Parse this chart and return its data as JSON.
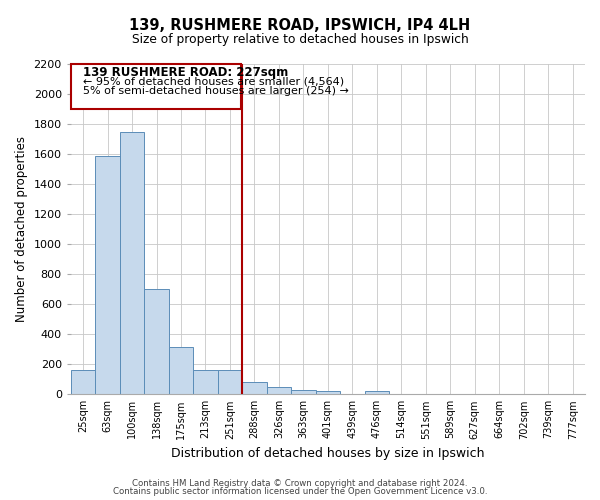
{
  "title": "139, RUSHMERE ROAD, IPSWICH, IP4 4LH",
  "subtitle": "Size of property relative to detached houses in Ipswich",
  "xlabel": "Distribution of detached houses by size in Ipswich",
  "ylabel": "Number of detached properties",
  "footer_line1": "Contains HM Land Registry data © Crown copyright and database right 2024.",
  "footer_line2": "Contains public sector information licensed under the Open Government Licence v3.0.",
  "bar_labels": [
    "25sqm",
    "63sqm",
    "100sqm",
    "138sqm",
    "175sqm",
    "213sqm",
    "251sqm",
    "288sqm",
    "326sqm",
    "363sqm",
    "401sqm",
    "439sqm",
    "476sqm",
    "514sqm",
    "551sqm",
    "589sqm",
    "627sqm",
    "664sqm",
    "702sqm",
    "739sqm",
    "777sqm"
  ],
  "bar_values": [
    160,
    1590,
    1750,
    700,
    315,
    160,
    160,
    85,
    50,
    30,
    20,
    0,
    20,
    0,
    0,
    0,
    0,
    0,
    0,
    0,
    0
  ],
  "bar_color": "#c6d9ec",
  "bar_edgecolor": "#5b8db8",
  "grid_color": "#c8c8c8",
  "vline_x": 6.5,
  "vline_color": "#aa0000",
  "annotation_title": "139 RUSHMERE ROAD: 227sqm",
  "annotation_line1": "← 95% of detached houses are smaller (4,564)",
  "annotation_line2": "5% of semi-detached houses are larger (254) →",
  "annotation_box_color": "#ffffff",
  "annotation_box_edgecolor": "#aa0000",
  "ylim": [
    0,
    2200
  ],
  "yticks": [
    0,
    200,
    400,
    600,
    800,
    1000,
    1200,
    1400,
    1600,
    1800,
    2000,
    2200
  ],
  "figwidth": 6.0,
  "figheight": 5.0,
  "dpi": 100
}
